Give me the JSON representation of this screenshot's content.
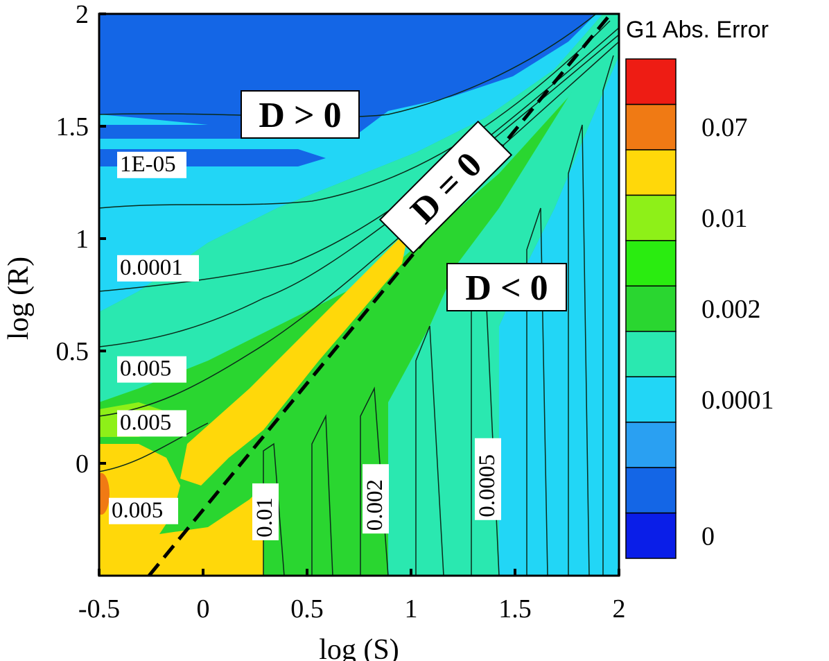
{
  "chart_data": {
    "type": "heatmap",
    "title": "",
    "xlabel": "log (S)",
    "ylabel": "log (R)",
    "xlim": [
      -0.5,
      2
    ],
    "ylim": [
      -0.5,
      2
    ],
    "x_ticks": [
      "-0.5",
      "0",
      "0.5",
      "1",
      "1.5",
      "2"
    ],
    "y_ticks": [
      "0",
      "0.5",
      "1",
      "1.5",
      "2"
    ],
    "x_tick_values": [
      -0.5,
      0,
      0.5,
      1,
      1.5,
      2
    ],
    "y_tick_values": [
      0,
      0.5,
      1,
      1.5,
      2
    ],
    "colorbar": {
      "title": "G1  Abs. Error",
      "levels_bottom_to_top": [
        "#0a1ee8",
        "#1466e6",
        "#2aa0f2",
        "#22d6f6",
        "#2ae8b0",
        "#2ad630",
        "#2aec10",
        "#8ef018",
        "#ffd80a",
        "#f07a14",
        "#ee1c14"
      ],
      "tick_labels": [
        "0",
        "0.0001",
        "0.002",
        "0.01",
        "0.07"
      ]
    },
    "region_labels": [
      "D > 0",
      "D = 0",
      "D < 0"
    ],
    "contour_labels": [
      {
        "text": "1E-05",
        "s": -0.4,
        "r": 1.3
      },
      {
        "text": "0.0001",
        "s": -0.4,
        "r": 0.84
      },
      {
        "text": "0.005",
        "s": -0.4,
        "r": 0.39
      },
      {
        "text": "0.005",
        "s": -0.4,
        "r": 0.15
      },
      {
        "text": "0.005",
        "s": -0.44,
        "r": -0.24
      },
      {
        "text": "0.01",
        "s": 0.33,
        "r": -0.33
      },
      {
        "text": "0.002",
        "s": 0.86,
        "r": -0.3
      },
      {
        "text": "0.0005",
        "s": 1.4,
        "r": -0.24
      }
    ],
    "dashed_line": {
      "label": "D = 0",
      "points": [
        [
          -0.26,
          -0.5
        ],
        [
          1.96,
          2
        ]
      ]
    },
    "grid": false
  }
}
